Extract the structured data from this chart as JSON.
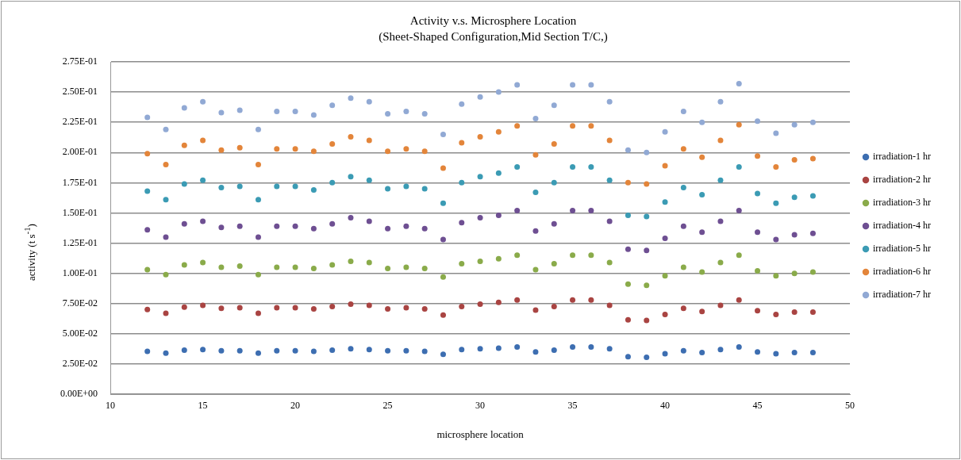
{
  "chart_data": {
    "type": "scatter",
    "title": "Activity v.s. Microsphere Location",
    "subtitle": "(Sheet-Shaped Configuration,Mid Section T/C,)",
    "xlabel": "microsphere location",
    "ylabel": "activity (t s$^{-1}$)",
    "x": [
      12,
      13,
      14,
      15,
      16,
      17,
      18,
      19,
      20,
      21,
      22,
      23,
      24,
      25,
      26,
      27,
      28,
      29,
      30,
      31,
      32,
      33,
      34,
      35,
      36,
      37,
      38,
      39,
      40,
      41,
      42,
      43,
      44,
      45,
      46,
      47,
      48
    ],
    "xlim": [
      10,
      50
    ],
    "xticks": [
      10,
      15,
      20,
      25,
      30,
      35,
      40,
      45,
      50
    ],
    "ylim": [
      0,
      0.275
    ],
    "yticks": [
      {
        "value": 0,
        "label": "0.00E+00"
      },
      {
        "value": 0.025,
        "label": "2.50E-02"
      },
      {
        "value": 0.05,
        "label": "5.00E-02"
      },
      {
        "value": 0.075,
        "label": "7.50E-02"
      },
      {
        "value": 0.1,
        "label": "1.00E-01"
      },
      {
        "value": 0.125,
        "label": "1.25E-01"
      },
      {
        "value": 0.15,
        "label": "1.50E-01"
      },
      {
        "value": 0.175,
        "label": "1.75E-01"
      },
      {
        "value": 0.2,
        "label": "2.00E-01"
      },
      {
        "value": 0.225,
        "label": "2.25E-01"
      },
      {
        "value": 0.25,
        "label": "2.50E-01"
      },
      {
        "value": 0.275,
        "label": "2.75E-01"
      }
    ],
    "grid": "y",
    "legend": "right",
    "marker": "circle",
    "series": [
      {
        "name": "irradiation-1 hr",
        "color": "#3d6eb1",
        "values": [
          0.0355,
          0.034,
          0.0365,
          0.037,
          0.036,
          0.036,
          0.034,
          0.036,
          0.036,
          0.0355,
          0.0365,
          0.0375,
          0.037,
          0.036,
          0.036,
          0.0355,
          0.033,
          0.037,
          0.0375,
          0.038,
          0.039,
          0.035,
          0.0365,
          0.039,
          0.039,
          0.0375,
          0.031,
          0.0305,
          0.0335,
          0.036,
          0.0345,
          0.037,
          0.039,
          0.035,
          0.0335,
          0.0345,
          0.0345
        ]
      },
      {
        "name": "irradiation-2 hr",
        "color": "#a94442",
        "values": [
          0.07,
          0.067,
          0.072,
          0.0735,
          0.071,
          0.0715,
          0.067,
          0.0715,
          0.0715,
          0.0705,
          0.0725,
          0.0745,
          0.0735,
          0.0705,
          0.0715,
          0.0705,
          0.0655,
          0.0725,
          0.0745,
          0.076,
          0.078,
          0.0695,
          0.0725,
          0.078,
          0.078,
          0.0735,
          0.0615,
          0.061,
          0.066,
          0.071,
          0.0685,
          0.0735,
          0.078,
          0.069,
          0.066,
          0.068,
          0.068
        ]
      },
      {
        "name": "irradiation-3 hr",
        "color": "#8aab4a",
        "values": [
          0.103,
          0.099,
          0.107,
          0.109,
          0.105,
          0.106,
          0.099,
          0.105,
          0.105,
          0.104,
          0.107,
          0.11,
          0.109,
          0.104,
          0.105,
          0.104,
          0.097,
          0.108,
          0.11,
          0.112,
          0.115,
          0.103,
          0.108,
          0.115,
          0.115,
          0.109,
          0.091,
          0.09,
          0.098,
          0.105,
          0.101,
          0.109,
          0.115,
          0.102,
          0.098,
          0.1,
          0.101
        ]
      },
      {
        "name": "irradiation-4 hr",
        "color": "#6e4f92",
        "values": [
          0.136,
          0.13,
          0.141,
          0.143,
          0.138,
          0.139,
          0.13,
          0.139,
          0.139,
          0.137,
          0.141,
          0.146,
          0.143,
          0.137,
          0.139,
          0.137,
          0.128,
          0.142,
          0.146,
          0.148,
          0.152,
          0.135,
          0.141,
          0.152,
          0.152,
          0.143,
          0.12,
          0.119,
          0.129,
          0.139,
          0.134,
          0.143,
          0.152,
          0.134,
          0.128,
          0.132,
          0.133
        ]
      },
      {
        "name": "irradiation-5 hr",
        "color": "#3b9bb4",
        "values": [
          0.168,
          0.161,
          0.174,
          0.177,
          0.171,
          0.172,
          0.161,
          0.172,
          0.172,
          0.169,
          0.175,
          0.18,
          0.177,
          0.17,
          0.172,
          0.17,
          0.158,
          0.175,
          0.18,
          0.183,
          0.188,
          0.167,
          0.175,
          0.188,
          0.188,
          0.177,
          0.148,
          0.147,
          0.159,
          0.171,
          0.165,
          0.177,
          0.188,
          0.166,
          0.158,
          0.163,
          0.164
        ]
      },
      {
        "name": "irradiation-6 hr",
        "color": "#e3853a",
        "values": [
          0.199,
          0.19,
          0.206,
          0.21,
          0.202,
          0.204,
          0.19,
          0.203,
          0.203,
          0.201,
          0.207,
          0.213,
          0.21,
          0.201,
          0.203,
          0.201,
          0.187,
          0.208,
          0.213,
          0.217,
          0.222,
          0.198,
          0.207,
          0.222,
          0.222,
          0.21,
          0.175,
          0.174,
          0.189,
          0.203,
          0.196,
          0.21,
          0.223,
          0.197,
          0.188,
          0.194,
          0.195
        ]
      },
      {
        "name": "irradiation-7 hr",
        "color": "#91a9d4",
        "values": [
          0.229,
          0.219,
          0.237,
          0.242,
          0.233,
          0.235,
          0.219,
          0.234,
          0.234,
          0.231,
          0.239,
          0.245,
          0.242,
          0.232,
          0.234,
          0.232,
          0.215,
          0.24,
          0.246,
          0.25,
          0.256,
          0.228,
          0.239,
          0.256,
          0.256,
          0.242,
          0.202,
          0.2,
          0.217,
          0.234,
          0.225,
          0.242,
          0.257,
          0.226,
          0.216,
          0.223,
          0.225
        ]
      }
    ]
  }
}
